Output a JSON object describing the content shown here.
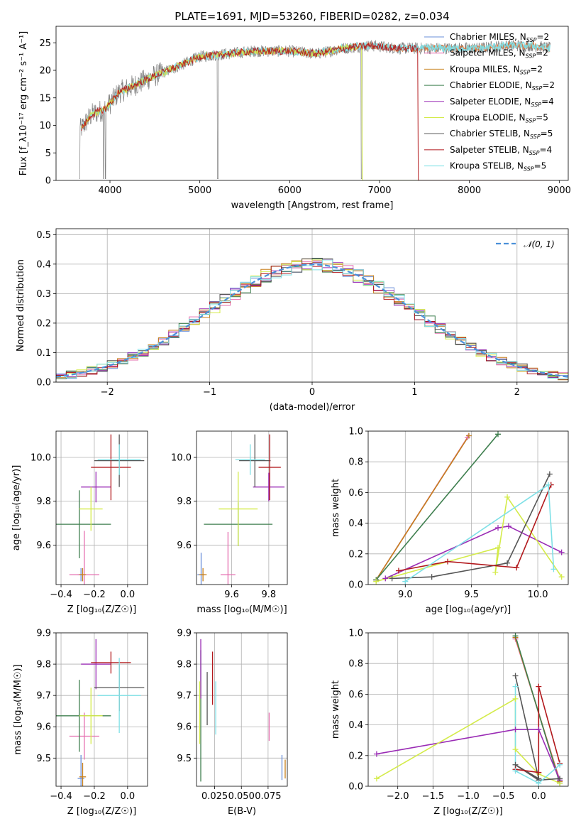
{
  "colors": {
    "chabrier_miles": "#6a8fd9",
    "salpeter_miles": "#e56fb0",
    "kroupa_miles": "#c87f1a",
    "chabrier_elodie": "#3f7f4f",
    "salpeter_elodie": "#9a2cb5",
    "kroupa_elodie": "#d4eb4a",
    "chabrier_stelib": "#555555",
    "salpeter_stelib": "#b2181c",
    "kroupa_stelib": "#7ee0e6",
    "spectrum_grey": "#808080",
    "spectrum_orange": "#e07030",
    "gaussian": "#4a90d9",
    "grid": "#b0b0b0"
  },
  "chart_data": [
    {
      "id": "spectrum",
      "type": "line",
      "title": "PLATE=1691, MJD=53260, FIBERID=0282, z=0.034",
      "xlabel": "wavelength [Angstrom, rest frame]",
      "ylabel": "Flux [f_λ10⁻¹⁷ erg cm⁻² s⁻¹ A⁻¹]",
      "xlim": [
        3400,
        9100
      ],
      "ylim": [
        0,
        28
      ],
      "xticks": [
        4000,
        5000,
        6000,
        7000,
        8000,
        9000
      ],
      "yticks": [
        0,
        5,
        10,
        15,
        20,
        25
      ],
      "grid": false,
      "legend_position": "top-right",
      "legend": [
        {
          "key": "chabrier_miles",
          "base": "Chabrier MILES, N",
          "sub": "SSP",
          "tail": "=2"
        },
        {
          "key": "salpeter_miles",
          "base": "Salpeter MILES, N",
          "sub": "SSP",
          "tail": "=2"
        },
        {
          "key": "kroupa_miles",
          "base": "Kroupa MILES, N",
          "sub": "SSP",
          "tail": "=2"
        },
        {
          "key": "chabrier_elodie",
          "base": "Chabrier ELODIE, N",
          "sub": "SSP",
          "tail": "=2"
        },
        {
          "key": "salpeter_elodie",
          "base": "Salpeter ELODIE, N",
          "sub": "SSP",
          "tail": "=4"
        },
        {
          "key": "kroupa_elodie",
          "base": "Kroupa ELODIE, N",
          "sub": "SSP",
          "tail": "=5"
        },
        {
          "key": "chabrier_stelib",
          "base": "Chabrier STELIB, N",
          "sub": "SSP",
          "tail": "=5"
        },
        {
          "key": "salpeter_stelib",
          "base": "Salpeter STELIB, N",
          "sub": "SSP",
          "tail": "=4"
        },
        {
          "key": "kroupa_stelib",
          "base": "Kroupa STELIB, N",
          "sub": "SSP",
          "tail": "=5"
        }
      ],
      "continuum": {
        "x": [
          3660,
          3800,
          3950,
          4100,
          4300,
          4500,
          4800,
          5000,
          5300,
          5600,
          6000,
          6300,
          6600,
          6900,
          7200,
          7500,
          7800,
          8100,
          8400,
          8700,
          8900
        ],
        "y": [
          9,
          12,
          13,
          16,
          17.5,
          19,
          21,
          22.5,
          23,
          23.5,
          23.5,
          23,
          24,
          24.5,
          24,
          24,
          24,
          24,
          24.5,
          24.5,
          24
        ]
      },
      "features": {
        "grey_range": [
          3660,
          8900
        ],
        "model_range": [
          3680,
          8900
        ],
        "elodie_cutoff": 6800,
        "stelib_cutoff": 7430,
        "deep_absorption": [
          3660,
          3930,
          3950,
          5200,
          6800
        ]
      }
    },
    {
      "id": "residuals",
      "type": "histogram",
      "xlabel": "(data-model)/error",
      "ylabel": "Normed distribution",
      "xlim": [
        -2.5,
        2.5
      ],
      "ylim": [
        0,
        0.52
      ],
      "xticks": [
        -2,
        -1,
        0,
        1,
        2
      ],
      "yticks": [
        0.0,
        0.1,
        0.2,
        0.3,
        0.4,
        0.5
      ],
      "grid": true,
      "legend_position": "top-right",
      "gaussian_label": "𝒩(0, 1)",
      "bin_width": 0.1
    },
    {
      "id": "age_vs_Z",
      "type": "errorbar",
      "xlabel": "Z [log₁₀(Z/Z☉)]",
      "ylabel": "age  [log₁₀(age/yr)]",
      "xlim": [
        -0.43,
        0.12
      ],
      "ylim": [
        9.42,
        10.12
      ],
      "xticks": [
        -0.4,
        -0.2,
        0.0
      ],
      "yticks": [
        9.6,
        9.8,
        10.0
      ],
      "grid": true,
      "points": [
        {
          "key": "chabrier_miles",
          "x": -0.28,
          "xerr": 0.02,
          "y": 9.465,
          "yerr": 0.03
        },
        {
          "key": "salpeter_miles",
          "x": -0.26,
          "xerr": 0.09,
          "y": 9.465,
          "yerr": 0.2
        },
        {
          "key": "kroupa_miles",
          "x": -0.27,
          "xerr": 0.02,
          "y": 9.465,
          "yerr": 0.03
        },
        {
          "key": "chabrier_elodie",
          "x": -0.29,
          "xerr": 0.19,
          "y": 9.695,
          "yerr": 0.155
        },
        {
          "key": "salpeter_elodie",
          "x": -0.19,
          "xerr": 0.09,
          "y": 9.865,
          "yerr": 0.07
        },
        {
          "key": "kroupa_elodie",
          "x": -0.22,
          "xerr": 0.07,
          "y": 9.765,
          "yerr": 0.1
        },
        {
          "key": "chabrier_stelib",
          "x": -0.05,
          "xerr": 0.15,
          "y": 9.985,
          "yerr": 0.12
        },
        {
          "key": "salpeter_stelib",
          "x": -0.1,
          "xerr": 0.12,
          "y": 9.955,
          "yerr": 0.15
        },
        {
          "key": "kroupa_stelib",
          "x": -0.05,
          "xerr": 0.13,
          "y": 9.99,
          "yerr": 0.07
        }
      ]
    },
    {
      "id": "age_vs_mass",
      "type": "errorbar",
      "xlabel": "mass [log₁₀(M/M☉)]",
      "ylabel": "",
      "xlim": [
        9.41,
        9.9
      ],
      "ylim": [
        9.42,
        10.12
      ],
      "xticks": [
        9.6,
        9.8
      ],
      "yticks": [
        9.6,
        9.8,
        10.0
      ],
      "grid": true,
      "points": [
        {
          "key": "chabrier_miles",
          "x": 9.435,
          "xerr": 0.02,
          "y": 9.465,
          "yerr": 0.1
        },
        {
          "key": "salpeter_miles",
          "x": 9.58,
          "xerr": 0.04,
          "y": 9.465,
          "yerr": 0.195
        },
        {
          "key": "kroupa_miles",
          "x": 9.445,
          "xerr": 0.02,
          "y": 9.465,
          "yerr": 0.03
        },
        {
          "key": "chabrier_elodie",
          "x": 9.635,
          "xerr": 0.185,
          "y": 9.695,
          "yerr": 0.1
        },
        {
          "key": "salpeter_elodie",
          "x": 9.8,
          "xerr": 0.085,
          "y": 9.865,
          "yerr": 0.065
        },
        {
          "key": "kroupa_elodie",
          "x": 9.635,
          "xerr": 0.105,
          "y": 9.765,
          "yerr": 0.17
        },
        {
          "key": "chabrier_stelib",
          "x": 9.725,
          "xerr": 0.085,
          "y": 9.985,
          "yerr": 0.12
        },
        {
          "key": "salpeter_stelib",
          "x": 9.805,
          "xerr": 0.06,
          "y": 9.955,
          "yerr": 0.15
        },
        {
          "key": "kroupa_stelib",
          "x": 9.7,
          "xerr": 0.08,
          "y": 9.99,
          "yerr": 0.07
        }
      ]
    },
    {
      "id": "weight_vs_age",
      "type": "line",
      "xlabel": "age  [log₁₀(age/yr)]",
      "ylabel": "mass weight",
      "xlim": [
        8.72,
        10.23
      ],
      "ylim": [
        0.0,
        1.0
      ],
      "xticks": [
        9.0,
        9.5,
        10.0
      ],
      "yticks": [
        0.0,
        0.2,
        0.4,
        0.6,
        0.8,
        1.0
      ],
      "grid": true,
      "series": [
        {
          "key": "chabrier_miles",
          "x": [
            8.78,
            9.48
          ],
          "y": [
            0.03,
            0.97
          ]
        },
        {
          "key": "salpeter_miles",
          "x": [
            8.78,
            9.47
          ],
          "y": [
            0.03,
            0.96
          ]
        },
        {
          "key": "kroupa_miles",
          "x": [
            8.78,
            9.48
          ],
          "y": [
            0.03,
            0.97
          ]
        },
        {
          "key": "chabrier_elodie",
          "x": [
            8.78,
            9.7
          ],
          "y": [
            0.03,
            0.98
          ]
        },
        {
          "key": "salpeter_elodie",
          "x": [
            8.85,
            9.7,
            9.78,
            10.18
          ],
          "y": [
            0.04,
            0.37,
            0.38,
            0.21
          ]
        },
        {
          "key": "kroupa_elodie",
          "x": [
            8.78,
            9.7,
            9.68,
            9.77,
            10.18
          ],
          "y": [
            0.02,
            0.24,
            0.08,
            0.57,
            0.05
          ]
        },
        {
          "key": "chabrier_stelib",
          "x": [
            8.9,
            9.2,
            9.77,
            10.09
          ],
          "y": [
            0.04,
            0.05,
            0.14,
            0.72
          ]
        },
        {
          "key": "salpeter_stelib",
          "x": [
            8.95,
            9.32,
            9.84,
            10.1
          ],
          "y": [
            0.09,
            0.15,
            0.11,
            0.65
          ]
        },
        {
          "key": "kroupa_stelib",
          "x": [
            9.0,
            10.08,
            10.12
          ],
          "y": [
            0.02,
            0.65,
            0.1
          ]
        }
      ]
    },
    {
      "id": "mass_vs_Z",
      "type": "errorbar",
      "xlabel": "Z [log₁₀(Z/Z☉)]",
      "ylabel": "mass [log₁₀(M/M☉)]",
      "xlim": [
        -0.43,
        0.12
      ],
      "ylim": [
        9.41,
        9.9
      ],
      "xticks": [
        -0.4,
        -0.2,
        0.0
      ],
      "yticks": [
        9.5,
        9.6,
        9.7,
        9.8,
        9.9
      ],
      "grid": true,
      "points": [
        {
          "key": "chabrier_miles",
          "x": -0.28,
          "xerr": 0.02,
          "y": 9.435,
          "yerr": 0.075
        },
        {
          "key": "salpeter_miles",
          "x": -0.26,
          "xerr": 0.09,
          "y": 9.57,
          "yerr": 0.075
        },
        {
          "key": "kroupa_miles",
          "x": -0.27,
          "xerr": 0.02,
          "y": 9.44,
          "yerr": 0.045
        },
        {
          "key": "chabrier_elodie",
          "x": -0.29,
          "xerr": 0.19,
          "y": 9.635,
          "yerr": 0.115
        },
        {
          "key": "salpeter_elodie",
          "x": -0.19,
          "xerr": 0.09,
          "y": 9.8,
          "yerr": 0.08
        },
        {
          "key": "kroupa_elodie",
          "x": -0.22,
          "xerr": 0.07,
          "y": 9.635,
          "yerr": 0.09
        },
        {
          "key": "chabrier_stelib",
          "x": -0.05,
          "xerr": 0.15,
          "y": 9.725,
          "yerr": 0.075
        },
        {
          "key": "salpeter_stelib",
          "x": -0.1,
          "xerr": 0.12,
          "y": 9.805,
          "yerr": 0.035
        },
        {
          "key": "kroupa_stelib",
          "x": -0.05,
          "xerr": 0.13,
          "y": 9.7,
          "yerr": 0.12
        }
      ]
    },
    {
      "id": "mass_vs_ebv",
      "type": "errorbar",
      "xlabel": "E(B-V)",
      "ylabel": "",
      "xlim": [
        0.008,
        0.093
      ],
      "ylim": [
        9.41,
        9.9
      ],
      "xticks": [
        0.025,
        0.05,
        0.075
      ],
      "xtick_labels": [
        "0.025",
        "0.050",
        "0.075"
      ],
      "yticks": [
        9.5,
        9.6,
        9.7,
        9.8,
        9.9
      ],
      "grid": true,
      "points": [
        {
          "key": "chabrier_miles",
          "x": 0.088,
          "y": 9.47,
          "yerr": 0.04
        },
        {
          "key": "salpeter_miles",
          "x": 0.076,
          "y": 9.6,
          "yerr": 0.045
        },
        {
          "key": "kroupa_miles",
          "x": 0.091,
          "y": 9.465,
          "yerr": 0.03
        },
        {
          "key": "chabrier_elodie",
          "x": 0.012,
          "y": 9.635,
          "yerr": 0.21
        },
        {
          "key": "salpeter_elodie",
          "x": 0.012,
          "y": 9.785,
          "yerr": 0.095
        },
        {
          "key": "kroupa_elodie",
          "x": 0.011,
          "y": 9.645,
          "yerr": 0.1
        },
        {
          "key": "chabrier_stelib",
          "x": 0.018,
          "y": 9.69,
          "yerr": 0.085
        },
        {
          "key": "salpeter_stelib",
          "x": 0.023,
          "y": 9.755,
          "yerr": 0.085
        },
        {
          "key": "kroupa_stelib",
          "x": 0.026,
          "y": 9.66,
          "yerr": 0.085
        }
      ]
    },
    {
      "id": "weight_vs_Z",
      "type": "line",
      "xlabel": "Z [log₁₀(Z/Z☉)]",
      "ylabel": "mass weight",
      "xlim": [
        -2.42,
        0.42
      ],
      "ylim": [
        0.0,
        1.0
      ],
      "xticks": [
        -2.0,
        -1.5,
        -1.0,
        -0.5,
        0.0
      ],
      "yticks": [
        0.0,
        0.2,
        0.4,
        0.6,
        0.8,
        1.0
      ],
      "grid": true,
      "series": [
        {
          "key": "chabrier_miles",
          "x": [
            -0.33,
            0.3
          ],
          "y": [
            0.97,
            0.03
          ]
        },
        {
          "key": "salpeter_miles",
          "x": [
            -0.33,
            0.3
          ],
          "y": [
            0.96,
            0.04
          ]
        },
        {
          "key": "kroupa_miles",
          "x": [
            -0.33,
            0.3
          ],
          "y": [
            0.97,
            0.03
          ]
        },
        {
          "key": "chabrier_elodie",
          "x": [
            -0.33,
            0.3
          ],
          "y": [
            0.98,
            0.02
          ]
        },
        {
          "key": "salpeter_elodie",
          "x": [
            -2.3,
            -0.33,
            0.0,
            0.3
          ],
          "y": [
            0.21,
            0.37,
            0.37,
            0.04
          ]
        },
        {
          "key": "kroupa_elodie",
          "x": [
            -2.3,
            -0.33,
            -0.33,
            0.0,
            0.3
          ],
          "y": [
            0.05,
            0.57,
            0.24,
            0.08,
            0.02
          ]
        },
        {
          "key": "chabrier_stelib",
          "x": [
            -0.33,
            0.0,
            -0.33,
            0.0,
            0.3
          ],
          "y": [
            0.72,
            0.05,
            0.14,
            0.04,
            0.05
          ]
        },
        {
          "key": "salpeter_stelib",
          "x": [
            -0.33,
            0.0,
            0.0,
            0.3
          ],
          "y": [
            0.11,
            0.09,
            0.65,
            0.15
          ]
        },
        {
          "key": "kroupa_stelib",
          "x": [
            -0.33,
            -0.33,
            0.0,
            0.3
          ],
          "y": [
            0.65,
            0.1,
            0.02,
            0.14
          ]
        }
      ]
    }
  ]
}
